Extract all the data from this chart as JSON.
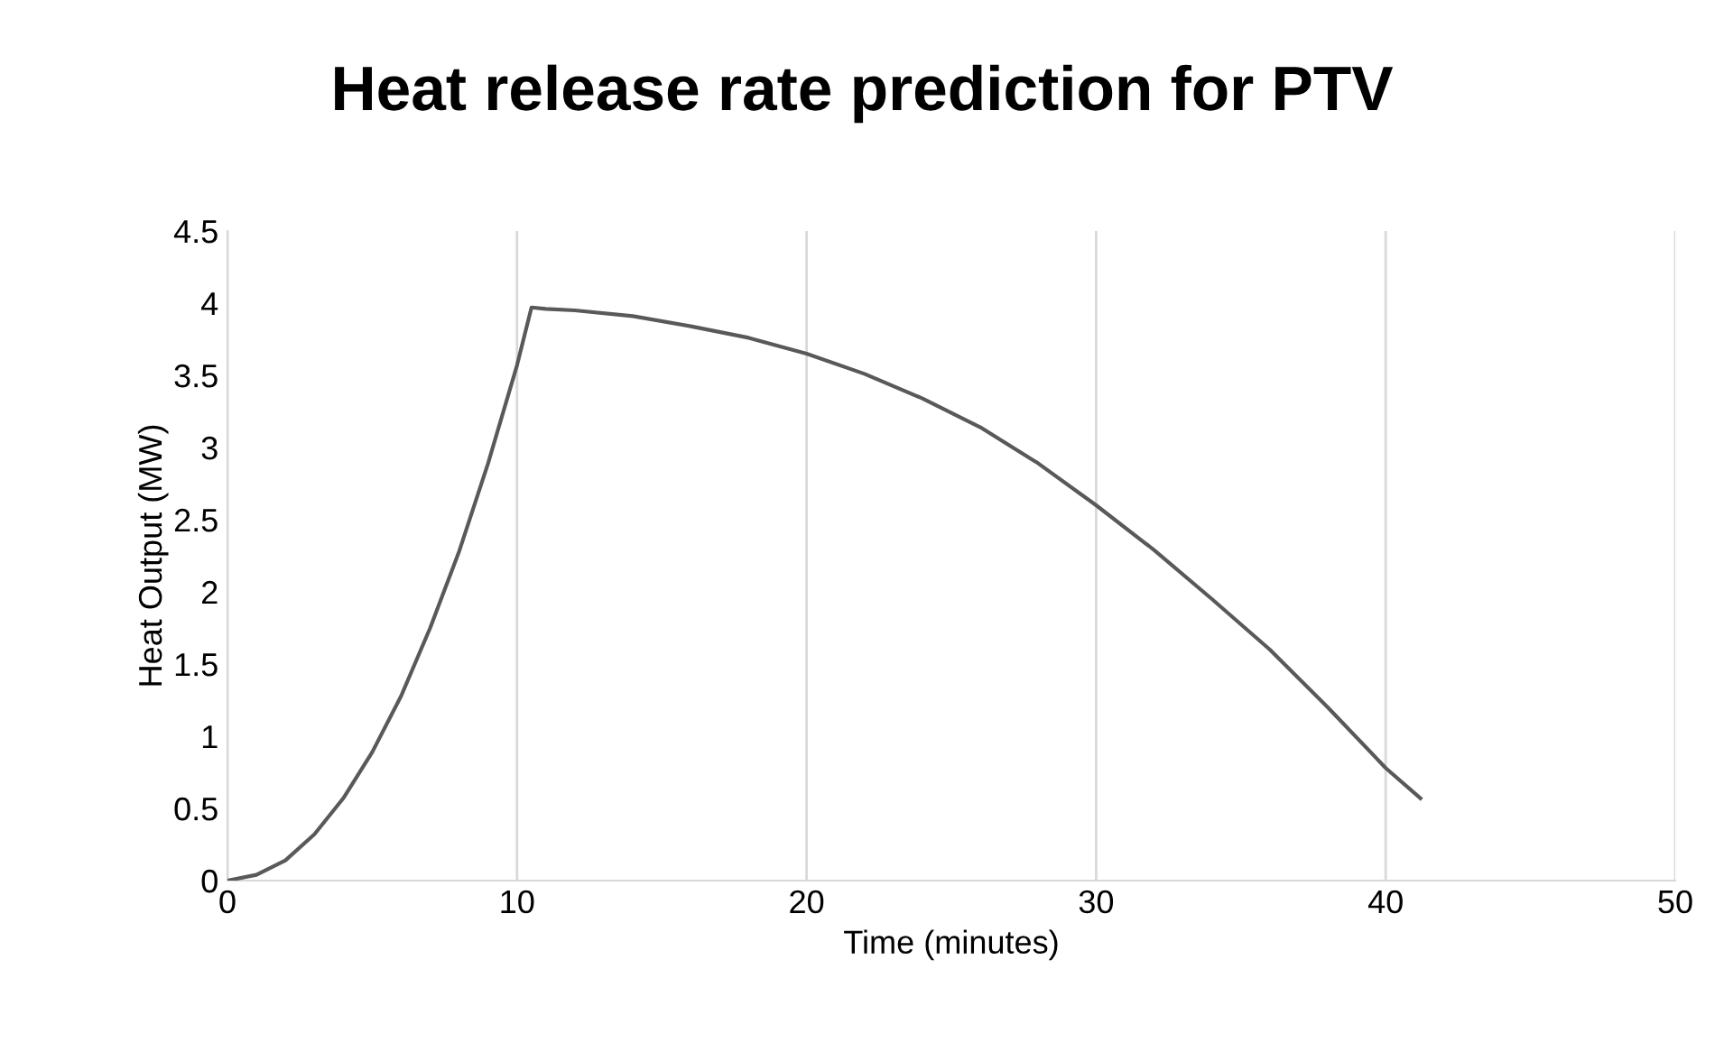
{
  "chart_data": {
    "type": "line",
    "title": "Heat release rate prediction for PTV",
    "xlabel": "Time (minutes)",
    "ylabel": "Heat Output (MW)",
    "series": [
      {
        "color": "#595959",
        "x": [
          0,
          1,
          2,
          3,
          4,
          5,
          6,
          7,
          8,
          9,
          10,
          10.5,
          11,
          12,
          14,
          16,
          18,
          20,
          22,
          24,
          26,
          28,
          30,
          32,
          34,
          36,
          38,
          40,
          41.2
        ],
        "values": [
          0,
          0.04,
          0.14,
          0.32,
          0.57,
          0.89,
          1.28,
          1.75,
          2.28,
          2.89,
          3.57,
          3.97,
          3.96,
          3.95,
          3.91,
          3.84,
          3.76,
          3.65,
          3.51,
          3.34,
          3.14,
          2.89,
          2.6,
          2.29,
          1.95,
          1.6,
          1.2,
          0.78,
          0.57
        ]
      }
    ],
    "xlim": [
      0,
      50
    ],
    "xticks": [
      0,
      10,
      20,
      30,
      40,
      50
    ],
    "ylim": [
      0,
      4.5
    ],
    "yticks": [
      0,
      0.5,
      1,
      1.5,
      2,
      2.5,
      3,
      3.5,
      4,
      4.5
    ],
    "grid": "x",
    "legend": false,
    "marker": "none",
    "line_style": "solid"
  }
}
